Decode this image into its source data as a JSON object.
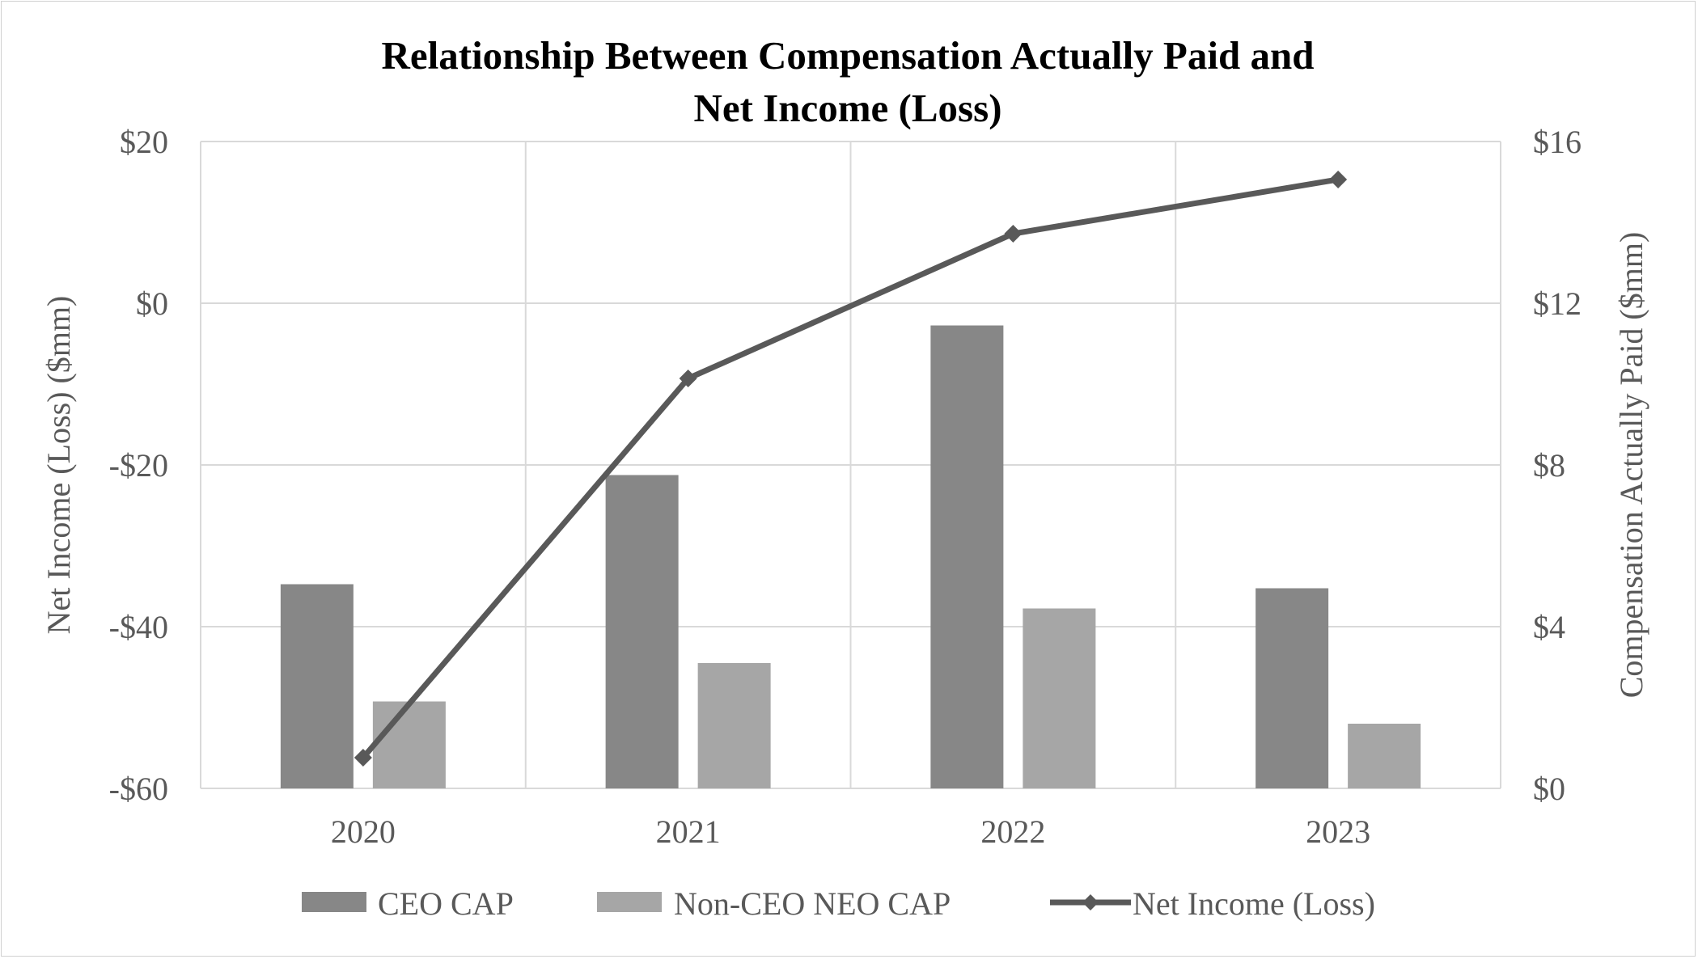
{
  "chart_data": {
    "type": "bar",
    "title": [
      "Relationship Between Compensation Actually Paid and",
      "Net Income (Loss)"
    ],
    "categories": [
      "2020",
      "2021",
      "2022",
      "2023"
    ],
    "series": [
      {
        "name": "CEO CAP",
        "kind": "bar",
        "axis": "right",
        "color": "#878787",
        "values": [
          5.05,
          7.75,
          11.45,
          4.95
        ]
      },
      {
        "name": "Non-CEO NEO CAP",
        "kind": "bar",
        "axis": "right",
        "color": "#a6a6a6",
        "values": [
          2.15,
          3.1,
          4.45,
          1.6
        ]
      },
      {
        "name": "Net Income (Loss)",
        "kind": "line",
        "axis": "left",
        "color": "#595959",
        "marker": "diamond",
        "values": [
          -56.2,
          -9.3,
          8.6,
          15.3
        ]
      }
    ],
    "left_axis": {
      "label": "Net Income (Loss) ($mm)",
      "ylim": [
        -60,
        20
      ],
      "ticks": [
        20,
        0,
        -20,
        -40,
        -60
      ],
      "tick_labels": [
        "$20",
        "$0",
        "-$20",
        "-$40",
        "-$60"
      ]
    },
    "right_axis": {
      "label": "Compensation Actually Paid ($mm)",
      "ylim": [
        0,
        16
      ],
      "ticks": [
        16,
        12,
        8,
        4,
        0
      ],
      "tick_labels": [
        "$16",
        "$12",
        "$8",
        "$4",
        "$0"
      ]
    },
    "grid": true,
    "legend_position": "bottom"
  }
}
